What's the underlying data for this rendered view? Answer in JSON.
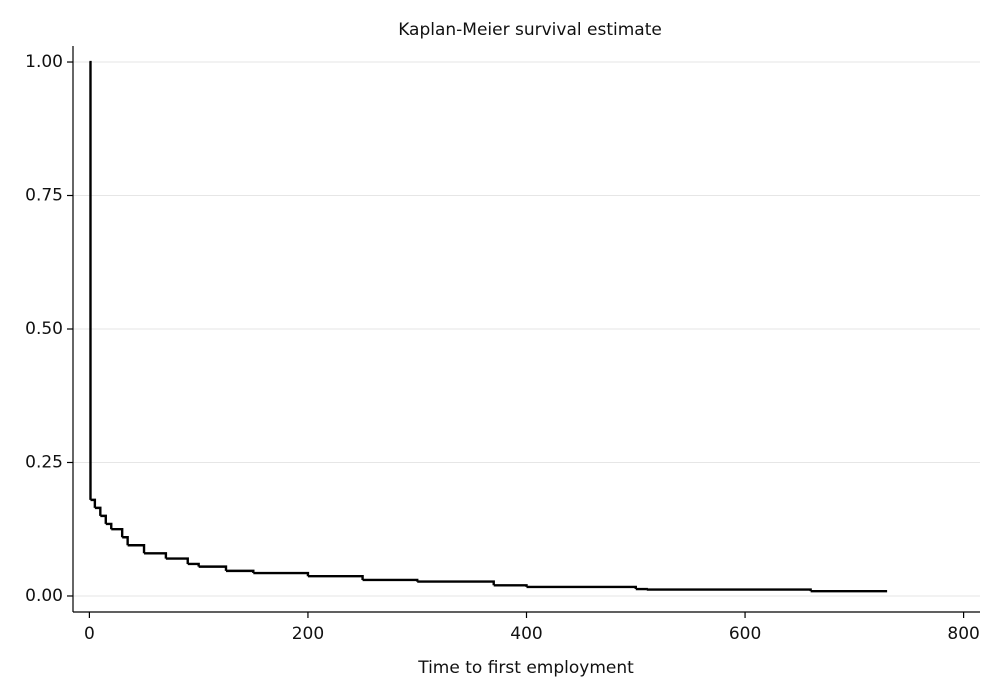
{
  "chart_data": {
    "type": "step",
    "title": "Kaplan-Meier survival estimate",
    "x_label": "Time to first employment",
    "x": [
      0,
      1,
      5,
      10,
      15,
      20,
      30,
      35,
      50,
      70,
      90,
      100,
      125,
      150,
      200,
      250,
      300,
      370,
      400,
      500,
      510,
      660,
      730
    ],
    "series": [
      {
        "color": "#000000",
        "values": [
          1.0,
          0.18,
          0.165,
          0.15,
          0.135,
          0.125,
          0.11,
          0.095,
          0.08,
          0.07,
          0.06,
          0.055,
          0.047,
          0.043,
          0.037,
          0.03,
          0.027,
          0.02,
          0.017,
          0.013,
          0.012,
          0.009,
          0.009
        ]
      }
    ],
    "xlim": [
      -15,
      815
    ],
    "ylim": [
      -0.03,
      1.03
    ],
    "xticks": [
      0,
      200,
      400,
      600,
      800
    ],
    "yticks": [
      {
        "value": 0,
        "label": "0.00"
      },
      {
        "value": 0.25,
        "label": "0.25"
      },
      {
        "value": 0.5,
        "label": "0.50"
      },
      {
        "value": 0.75,
        "label": "0.75"
      },
      {
        "value": 1,
        "label": "1.00"
      }
    ],
    "grid": true
  }
}
